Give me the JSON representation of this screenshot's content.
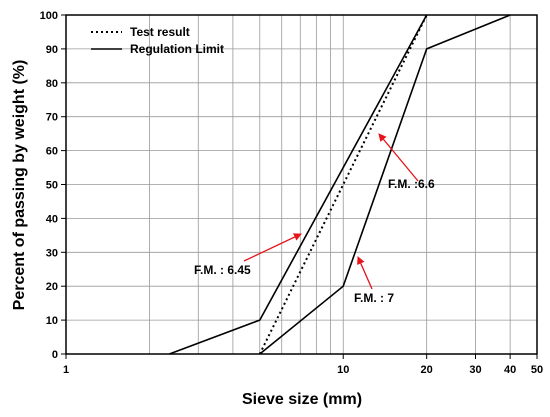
{
  "chart_data": {
    "type": "line",
    "xlabel": "Sieve size (mm)",
    "ylabel": "Percent of passing by weight (%)",
    "xscale": "log",
    "xlim": [
      1,
      50
    ],
    "ylim": [
      0,
      100
    ],
    "x_ticks": [
      1,
      10,
      20,
      30,
      40,
      50
    ],
    "x_tick_labels": [
      "1",
      "10",
      "20",
      "30",
      "40",
      "50"
    ],
    "y_ticks": [
      0,
      10,
      20,
      30,
      40,
      50,
      60,
      70,
      80,
      90,
      100
    ],
    "y_tick_labels": [
      "0",
      "10",
      "20",
      "30",
      "40",
      "50",
      "60",
      "70",
      "80",
      "90",
      "100"
    ],
    "grid": true,
    "legend": {
      "placement": "top-left",
      "entries": [
        {
          "label": "Test result",
          "style": "dotted"
        },
        {
          "label": "Regulation Limit",
          "style": "solid"
        }
      ]
    },
    "series": [
      {
        "name": "Test result",
        "style": "dotted",
        "color": "#000000",
        "points": [
          [
            5,
            0
          ],
          [
            20,
            100
          ]
        ]
      },
      {
        "name": "Regulation Limit",
        "style": "solid",
        "color": "#000000",
        "points": [
          [
            2.36,
            0
          ],
          [
            5,
            10
          ],
          [
            20,
            100
          ]
        ]
      },
      {
        "name": "Regulation Limit",
        "style": "solid",
        "color": "#000000",
        "points": [
          [
            5,
            0
          ],
          [
            10,
            20
          ],
          [
            20,
            90
          ],
          [
            40,
            100
          ]
        ]
      }
    ],
    "annotations": [
      {
        "text": "F.M. : 6.45",
        "points_to": [
          7,
          40
        ]
      },
      {
        "text": "F.M. :6.6",
        "points_to": [
          14,
          66
        ]
      },
      {
        "text": "F.M. : 7",
        "points_to": [
          11,
          30
        ]
      }
    ],
    "annotation_color": "#e8141a"
  }
}
